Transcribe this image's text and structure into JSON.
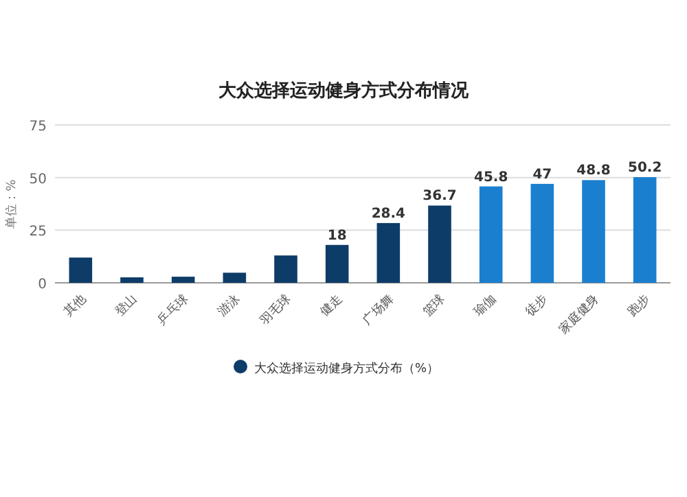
{
  "chart_data": {
    "type": "bar",
    "title": "大众选择运动健身方式分布情况",
    "ylabel": "单位：%",
    "categories": [
      "其他",
      "登山",
      "乒乓球",
      "游泳",
      "羽毛球",
      "健走",
      "广场舞",
      "篮球",
      "瑜伽",
      "徒步",
      "家庭健身",
      "跑步"
    ],
    "series": [
      {
        "name": "大众选择运动健身方式分布（%）",
        "color": "#0d3c68",
        "colors": [
          "#0d3c68",
          "#0d3c68",
          "#0d3c68",
          "#0d3c68",
          "#0d3c68",
          "#0d3c68",
          "#0d3c68",
          "#0d3c68",
          "#1a7fcf",
          "#1a7fcf",
          "#1a7fcf",
          "#1a7fcf"
        ],
        "values": [
          12,
          2.6,
          2.9,
          4.8,
          13,
          18,
          28.4,
          36.7,
          45.8,
          47,
          48.8,
          50.2
        ],
        "value_labels": [
          null,
          null,
          null,
          null,
          null,
          "18",
          "28.4",
          "36.7",
          "45.8",
          "47",
          "48.8",
          "50.2"
        ]
      }
    ],
    "ylim": [
      0,
      75
    ],
    "yticks": [
      0,
      25,
      50,
      75
    ],
    "grid": "y",
    "legend": "bottom"
  }
}
